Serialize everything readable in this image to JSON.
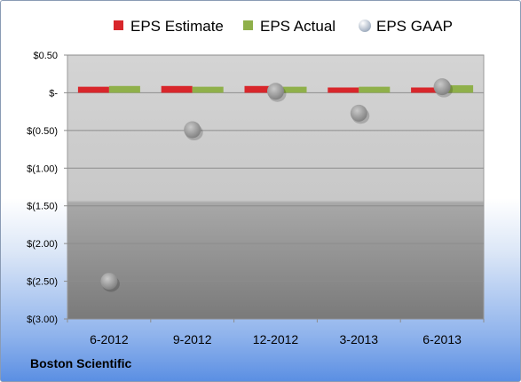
{
  "company": "Boston Scientific",
  "chart_data": {
    "type": "bar",
    "categories": [
      "6-2012",
      "9-2012",
      "12-2012",
      "3-2013",
      "6-2013"
    ],
    "series": [
      {
        "name": "EPS Estimate",
        "kind": "bar",
        "color": "#d8262b",
        "values": [
          0.08,
          0.09,
          0.09,
          0.07,
          0.07
        ]
      },
      {
        "name": "EPS Actual",
        "kind": "bar",
        "color": "#8fb04a",
        "values": [
          0.09,
          0.08,
          0.08,
          0.08,
          0.1
        ]
      },
      {
        "name": "EPS GAAP",
        "kind": "scatter",
        "color": "#a9a9a9",
        "values": [
          -2.5,
          -0.49,
          0.02,
          -0.27,
          0.08
        ]
      }
    ],
    "yticks": [
      "$0.50",
      "$-",
      "$(0.50)",
      "$(1.00)",
      "$(1.50)",
      "$(2.00)",
      "$(2.50)",
      "$(3.00)"
    ],
    "ytick_values": [
      0.5,
      0,
      -0.5,
      -1.0,
      -1.5,
      -2.0,
      -2.5,
      -3.0
    ],
    "ylim": [
      -3.0,
      0.5
    ],
    "grid": true,
    "legend_position": "top"
  }
}
